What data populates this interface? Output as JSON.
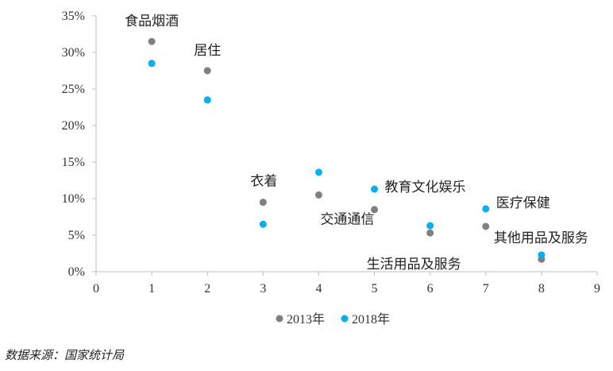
{
  "chart_data": {
    "type": "scatter",
    "xlim": [
      0,
      9
    ],
    "ylim": [
      0,
      35
    ],
    "x_ticks": [
      "0",
      "1",
      "2",
      "3",
      "4",
      "5",
      "6",
      "7",
      "8",
      "9"
    ],
    "y_ticks": [
      "0%",
      "5%",
      "10%",
      "15%",
      "20%",
      "25%",
      "30%",
      "35%"
    ],
    "grid": false,
    "legend_position": "bottom",
    "series": [
      {
        "name": "2013年",
        "color": "#808080",
        "points": [
          [
            1,
            31.5
          ],
          [
            2,
            27.5
          ],
          [
            3,
            9.5
          ],
          [
            4,
            10.5
          ],
          [
            5,
            8.5
          ],
          [
            6,
            5.3
          ],
          [
            7,
            6.2
          ],
          [
            8,
            1.7
          ]
        ]
      },
      {
        "name": "2018年",
        "color": "#00B0F0",
        "points": [
          [
            1,
            28.5
          ],
          [
            2,
            23.5
          ],
          [
            3,
            6.5
          ],
          [
            4,
            13.6
          ],
          [
            5,
            11.3
          ],
          [
            6,
            6.3
          ],
          [
            7,
            8.6
          ],
          [
            8,
            2.3
          ]
        ]
      }
    ],
    "category_labels": [
      "食品烟酒",
      "居住",
      "衣着",
      "交通通信",
      "教育文化娱乐",
      "生活用品及服务",
      "医疗保健",
      "其他用品及服务"
    ]
  },
  "source_note": "数据来源：国家统计局"
}
